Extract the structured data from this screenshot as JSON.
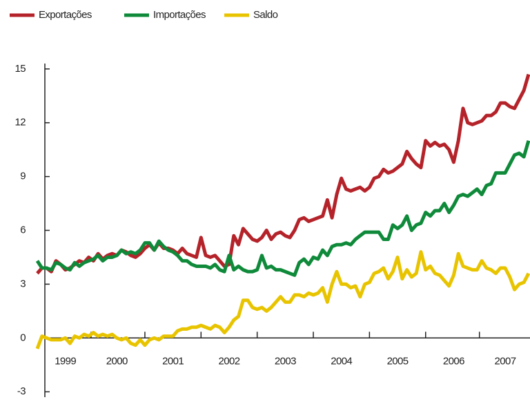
{
  "chart_data": {
    "type": "line",
    "categories": [
      null,
      null,
      null,
      null,
      null,
      null,
      "1999",
      null,
      null,
      null,
      null,
      null,
      null,
      null,
      null,
      null,
      null,
      "2000",
      null,
      null,
      null,
      null,
      null,
      null,
      null,
      null,
      null,
      null,
      null,
      "2001",
      null,
      null,
      null,
      null,
      null,
      null,
      null,
      null,
      null,
      null,
      null,
      "2002",
      null,
      null,
      null,
      null,
      null,
      null,
      null,
      null,
      null,
      null,
      null,
      "2003",
      null,
      null,
      null,
      null,
      null,
      null,
      null,
      null,
      null,
      null,
      null,
      "2004",
      null,
      null,
      null,
      null,
      null,
      null,
      null,
      null,
      null,
      null,
      null,
      "2005",
      null,
      null,
      null,
      null,
      null,
      null,
      null,
      null,
      null,
      null,
      null,
      "2006",
      null,
      null,
      null,
      null,
      null,
      null,
      null,
      null,
      null,
      null,
      "2007",
      null,
      null,
      null,
      null,
      null
    ],
    "series": [
      {
        "name": "Exportações",
        "color": "#b5232a",
        "values": [
          3.6,
          3.9,
          3.9,
          3.7,
          4.3,
          4.1,
          3.8,
          3.9,
          4.1,
          4.3,
          4.2,
          4.5,
          4.3,
          4.7,
          4.4,
          4.6,
          4.7,
          4.6,
          4.9,
          4.8,
          4.6,
          4.5,
          4.7,
          5.0,
          5.2,
          4.9,
          5.3,
          5.0,
          5.0,
          4.9,
          4.7,
          5.0,
          4.7,
          4.6,
          4.5,
          5.6,
          4.6,
          4.5,
          4.6,
          4.3,
          4.0,
          4.1,
          5.7,
          5.2,
          6.1,
          5.8,
          5.5,
          5.4,
          5.6,
          6.0,
          5.5,
          5.8,
          5.9,
          5.7,
          5.6,
          6.0,
          6.6,
          6.7,
          6.5,
          6.6,
          6.7,
          6.8,
          7.7,
          6.7,
          8.0,
          8.9,
          8.3,
          8.2,
          8.3,
          8.4,
          8.2,
          8.4,
          8.9,
          9.0,
          9.4,
          9.2,
          9.3,
          9.5,
          9.7,
          10.4,
          10.0,
          9.7,
          9.5,
          11.0,
          10.7,
          10.9,
          10.7,
          10.8,
          10.5,
          9.8,
          11.0,
          12.8,
          12.0,
          11.9,
          12.0,
          12.1,
          12.4,
          12.4,
          12.6,
          13.1,
          13.1,
          12.9,
          12.8,
          13.3,
          13.8,
          14.7
        ]
      },
      {
        "name": "Importações",
        "color": "#0f8a3a",
        "values": [
          4.3,
          3.9,
          3.9,
          3.8,
          4.2,
          4.1,
          3.9,
          3.8,
          4.2,
          4.0,
          4.2,
          4.3,
          4.4,
          4.6,
          4.3,
          4.5,
          4.5,
          4.6,
          4.9,
          4.7,
          4.8,
          4.7,
          4.9,
          5.3,
          5.3,
          4.9,
          5.4,
          5.1,
          4.9,
          4.8,
          4.6,
          4.3,
          4.3,
          4.1,
          4.0,
          4.0,
          4.0,
          3.9,
          4.1,
          3.8,
          3.7,
          4.6,
          3.8,
          4.0,
          3.8,
          3.7,
          3.7,
          3.8,
          4.6,
          3.9,
          4.0,
          3.8,
          3.8,
          3.7,
          3.6,
          3.5,
          4.2,
          4.4,
          4.1,
          4.5,
          4.4,
          4.9,
          4.6,
          5.1,
          5.2,
          5.2,
          5.3,
          5.2,
          5.5,
          5.7,
          5.9,
          5.9,
          5.9,
          5.9,
          5.5,
          5.5,
          6.3,
          6.1,
          6.3,
          6.8,
          6.0,
          6.3,
          6.4,
          7.0,
          6.8,
          7.1,
          7.1,
          7.5,
          7.0,
          7.4,
          7.9,
          8.0,
          7.9,
          8.1,
          8.3,
          8.0,
          8.5,
          8.6,
          9.2,
          9.2,
          9.2,
          9.7,
          10.2,
          10.3,
          10.1,
          11.0
        ]
      },
      {
        "name": "Saldo",
        "color": "#e8c400",
        "values": [
          -0.6,
          0.1,
          0.0,
          -0.1,
          -0.1,
          -0.1,
          0.0,
          -0.3,
          0.1,
          0.0,
          0.2,
          0.1,
          0.3,
          0.1,
          0.2,
          0.1,
          0.2,
          0.0,
          -0.1,
          0.0,
          -0.3,
          -0.4,
          -0.1,
          -0.4,
          -0.1,
          0.0,
          -0.1,
          0.1,
          0.1,
          0.1,
          0.4,
          0.5,
          0.5,
          0.6,
          0.6,
          0.7,
          0.6,
          0.5,
          0.7,
          0.6,
          0.3,
          0.6,
          1.0,
          1.2,
          2.1,
          2.1,
          1.7,
          1.6,
          1.7,
          1.5,
          1.7,
          2.0,
          2.3,
          2.0,
          2.0,
          2.4,
          2.4,
          2.3,
          2.5,
          2.4,
          2.5,
          2.8,
          2.0,
          3.0,
          3.7,
          3.0,
          3.0,
          2.8,
          2.9,
          2.3,
          3.0,
          3.1,
          3.6,
          3.7,
          3.9,
          3.3,
          3.7,
          4.5,
          3.3,
          3.8,
          3.4,
          3.6,
          4.8,
          3.8,
          4.0,
          3.6,
          3.5,
          3.2,
          2.9,
          3.5,
          4.7,
          4.0,
          3.9,
          3.8,
          3.8,
          4.3,
          3.9,
          3.8,
          3.6,
          3.9,
          3.9,
          3.4,
          2.7,
          3.0,
          3.1,
          3.6
        ]
      }
    ],
    "ylim": [
      -3.3,
      15.3
    ],
    "yticks": [
      -3,
      0,
      3,
      6,
      9,
      12,
      15
    ],
    "legend": "top-left"
  }
}
